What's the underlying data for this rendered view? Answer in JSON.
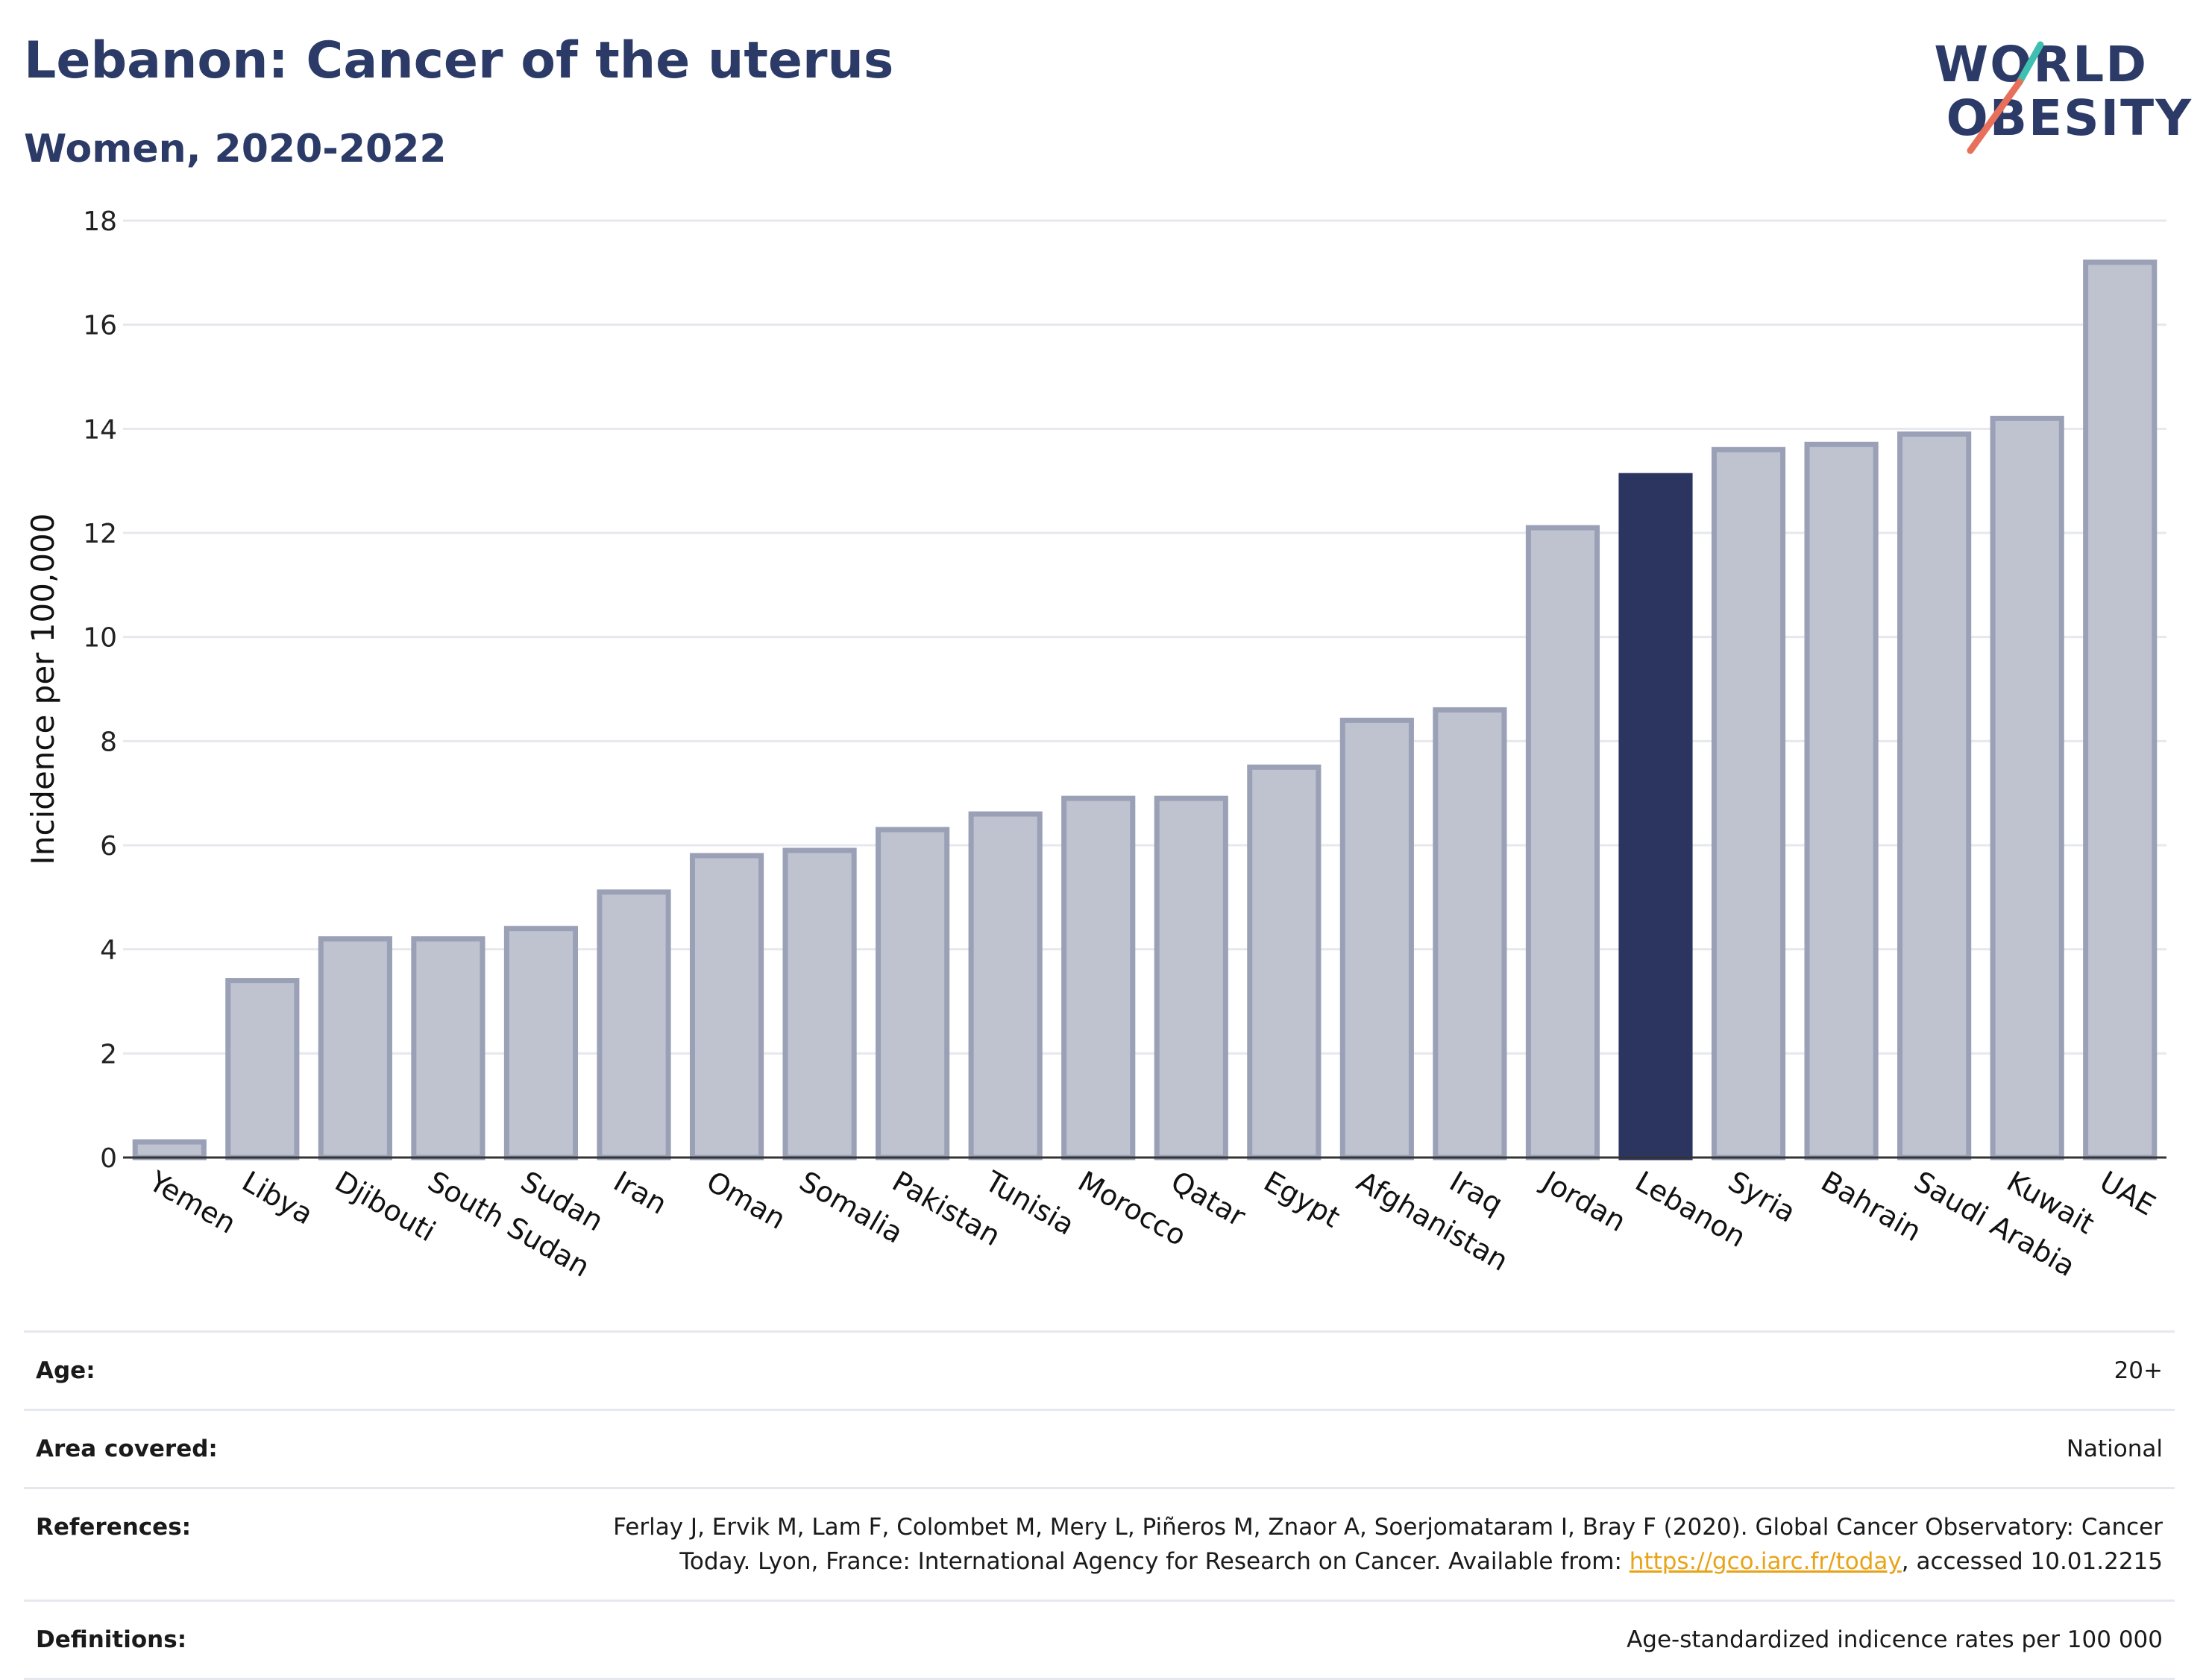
{
  "header": {
    "title": "Lebanon: Cancer of the uterus",
    "subtitle": "Women, 2020-2022"
  },
  "logo": {
    "line1": "WORLD",
    "line2": "OBESITY",
    "accent_colors": [
      "#3fbfb0",
      "#e8705a"
    ]
  },
  "colors": {
    "bar": "#bfc3d0",
    "bar_border": "#9aa0b6",
    "highlight": "#2b3560",
    "grid": "#e6e8ee",
    "axis": "#333333"
  },
  "chart_data": {
    "type": "bar",
    "title": "Lebanon: Cancer of the uterus",
    "subtitle": "Women, 2020-2022",
    "xlabel": "",
    "ylabel": "Incidence per 100,000",
    "ylim": [
      0,
      18
    ],
    "yticks": [
      0,
      2,
      4,
      6,
      8,
      10,
      12,
      14,
      16,
      18
    ],
    "grid": true,
    "categories": [
      "Yemen",
      "Libya",
      "Djibouti",
      "South Sudan",
      "Sudan",
      "Iran",
      "Oman",
      "Somalia",
      "Pakistan",
      "Tunisia",
      "Morocco",
      "Qatar",
      "Egypt",
      "Afghanistan",
      "Iraq",
      "Jordan",
      "Lebanon",
      "Syria",
      "Bahrain",
      "Saudi Arabia",
      "Kuwait",
      "UAE"
    ],
    "values": [
      0.3,
      3.4,
      4.2,
      4.2,
      4.4,
      5.1,
      5.8,
      5.9,
      6.3,
      6.6,
      6.9,
      6.9,
      7.5,
      8.4,
      8.6,
      12.1,
      13.1,
      13.6,
      13.7,
      13.9,
      14.2,
      17.2
    ],
    "highlight": "Lebanon"
  },
  "info": {
    "rows": [
      {
        "key": "Age:",
        "value": "20+"
      },
      {
        "key": "Area covered:",
        "value": "National"
      },
      {
        "key": "References:",
        "value": "Ferlay J, Ervik M, Lam F, Colombet M, Mery L, Piñeros M, Znaor A, Soerjomataram I, Bray F (2020). Global Cancer Observatory: Cancer Today. Lyon, France: International Agency for Research on Cancer. Available from: ",
        "link": "https://gco.iarc.fr/today",
        "suffix": ", accessed 10.01.2215"
      },
      {
        "key": "Definitions:",
        "value": "Age-standardized indicence rates per 100 000"
      }
    ]
  }
}
